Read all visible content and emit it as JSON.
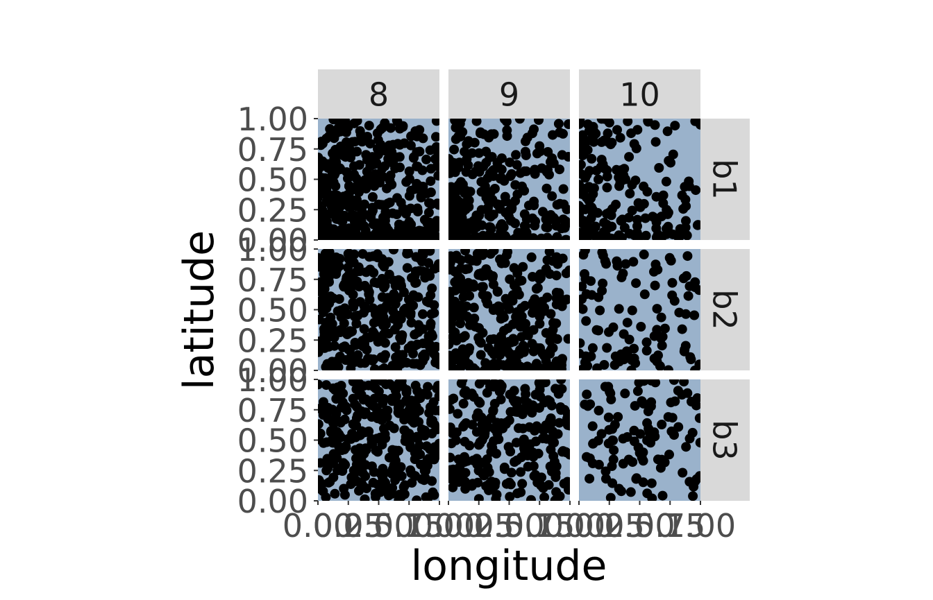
{
  "chart_data": {
    "type": "scatter",
    "facet_layout": "grid",
    "xlabel": "longitude",
    "ylabel": "latitude",
    "xlim": [
      0,
      1
    ],
    "ylim": [
      0,
      1
    ],
    "x_ticks": [
      0,
      0.25,
      0.5,
      0.75,
      1.0
    ],
    "x_tick_labels": [
      "0.00",
      "0.25",
      "0.50",
      "0.75",
      "1.00"
    ],
    "y_ticks": [
      0,
      0.25,
      0.5,
      0.75,
      1.0
    ],
    "y_tick_labels": [
      "0.00",
      "0.25",
      "0.50",
      "0.75",
      "1.00"
    ],
    "col_facets": [
      "8",
      "9",
      "10"
    ],
    "row_facets": [
      "b1",
      "b2",
      "b3"
    ],
    "grid": false,
    "legend": "none",
    "colors": {
      "panel_background": "#9ab2cb",
      "strip_background": "#d9d9d9",
      "point": "#000000",
      "tick_label": "#4d4d4d",
      "axis_title": "#000000"
    },
    "panels": [
      {
        "col": "8",
        "row": "b1",
        "n_points": 420,
        "x_distribution": "skew-low",
        "y_distribution": "skew-low"
      },
      {
        "col": "9",
        "row": "b1",
        "n_points": 300,
        "x_distribution": "skew-low",
        "y_distribution": "skew-low"
      },
      {
        "col": "10",
        "row": "b1",
        "n_points": 200,
        "x_distribution": "skew-low",
        "y_distribution": "skew-low"
      },
      {
        "col": "8",
        "row": "b2",
        "n_points": 330,
        "x_distribution": "mild-low",
        "y_distribution": "mild-low"
      },
      {
        "col": "9",
        "row": "b2",
        "n_points": 300,
        "x_distribution": "mild-low",
        "y_distribution": "mild-low"
      },
      {
        "col": "10",
        "row": "b2",
        "n_points": 110,
        "x_distribution": "mild-low",
        "y_distribution": "mild-low"
      },
      {
        "col": "8",
        "row": "b3",
        "n_points": 320,
        "x_distribution": "uniform",
        "y_distribution": "uniform"
      },
      {
        "col": "9",
        "row": "b3",
        "n_points": 240,
        "x_distribution": "uniform",
        "y_distribution": "uniform"
      },
      {
        "col": "10",
        "row": "b3",
        "n_points": 110,
        "x_distribution": "uniform",
        "y_distribution": "uniform"
      }
    ]
  }
}
